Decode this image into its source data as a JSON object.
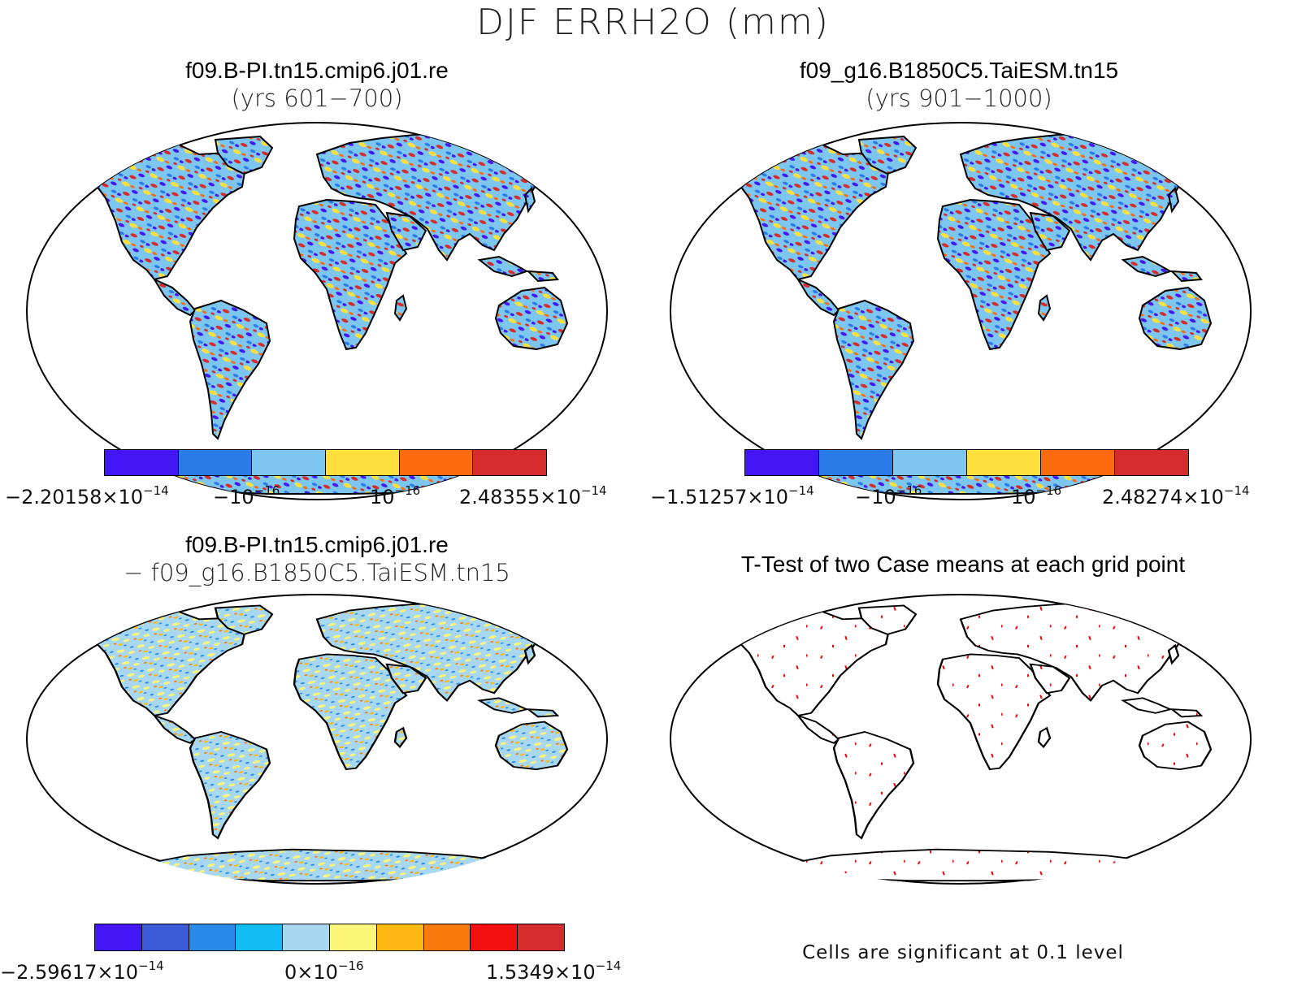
{
  "figure": {
    "title": "DJF ERRH2O (mm)"
  },
  "panels": [
    {
      "id": "case1",
      "title": "f09.B-PI.tn15.cmip6.j01.re",
      "subtitle": "(yrs 601−700)",
      "colors": [
        "#4216f5",
        "#2a7ae8",
        "#7dc6f0",
        "#fde03c",
        "#fb6a0c",
        "#d52b2b"
      ],
      "colorbar_labels": [
        {
          "base": "−2.20158×10",
          "exp": "−14"
        },
        {
          "base": "−10",
          "exp": "−16"
        },
        {
          "base": "10",
          "exp": "−16"
        },
        {
          "base": "2.48355×10",
          "exp": "−14"
        }
      ]
    },
    {
      "id": "case2",
      "title": "f09_g16.B1850C5.TaiESM.tn15",
      "subtitle": "(yrs 901−1000)",
      "colors": [
        "#4216f5",
        "#2a7ae8",
        "#7dc6f0",
        "#fde03c",
        "#fb6a0c",
        "#d52b2b"
      ],
      "colorbar_labels": [
        {
          "base": "−1.51257×10",
          "exp": "−14"
        },
        {
          "base": "−10",
          "exp": "−16"
        },
        {
          "base": "10",
          "exp": "−16"
        },
        {
          "base": "2.48274×10",
          "exp": "−14"
        }
      ]
    },
    {
      "id": "diff",
      "title": "f09.B-PI.tn15.cmip6.j01.re",
      "subtitle": "−  f09_g16.B1850C5.TaiESM.tn15",
      "colors": [
        "#4216f5",
        "#3a5ad8",
        "#2a8ae8",
        "#12bcf4",
        "#a8d8f0",
        "#fdf57a",
        "#fdb814",
        "#fb7a0c",
        "#f51010",
        "#d52b2b"
      ],
      "colorbar_labels": [
        {
          "base": "−2.59617×10",
          "exp": "−14"
        },
        {
          "base": "0×10",
          "exp": "−16"
        },
        {
          "base": "1.5349×10",
          "exp": "−14"
        }
      ]
    },
    {
      "id": "ttest",
      "title": "T-Test of two Case means at each grid point",
      "subtitle": "",
      "note": "Cells are significant at 0.1 level",
      "significant_color": "#ee0000"
    }
  ]
}
